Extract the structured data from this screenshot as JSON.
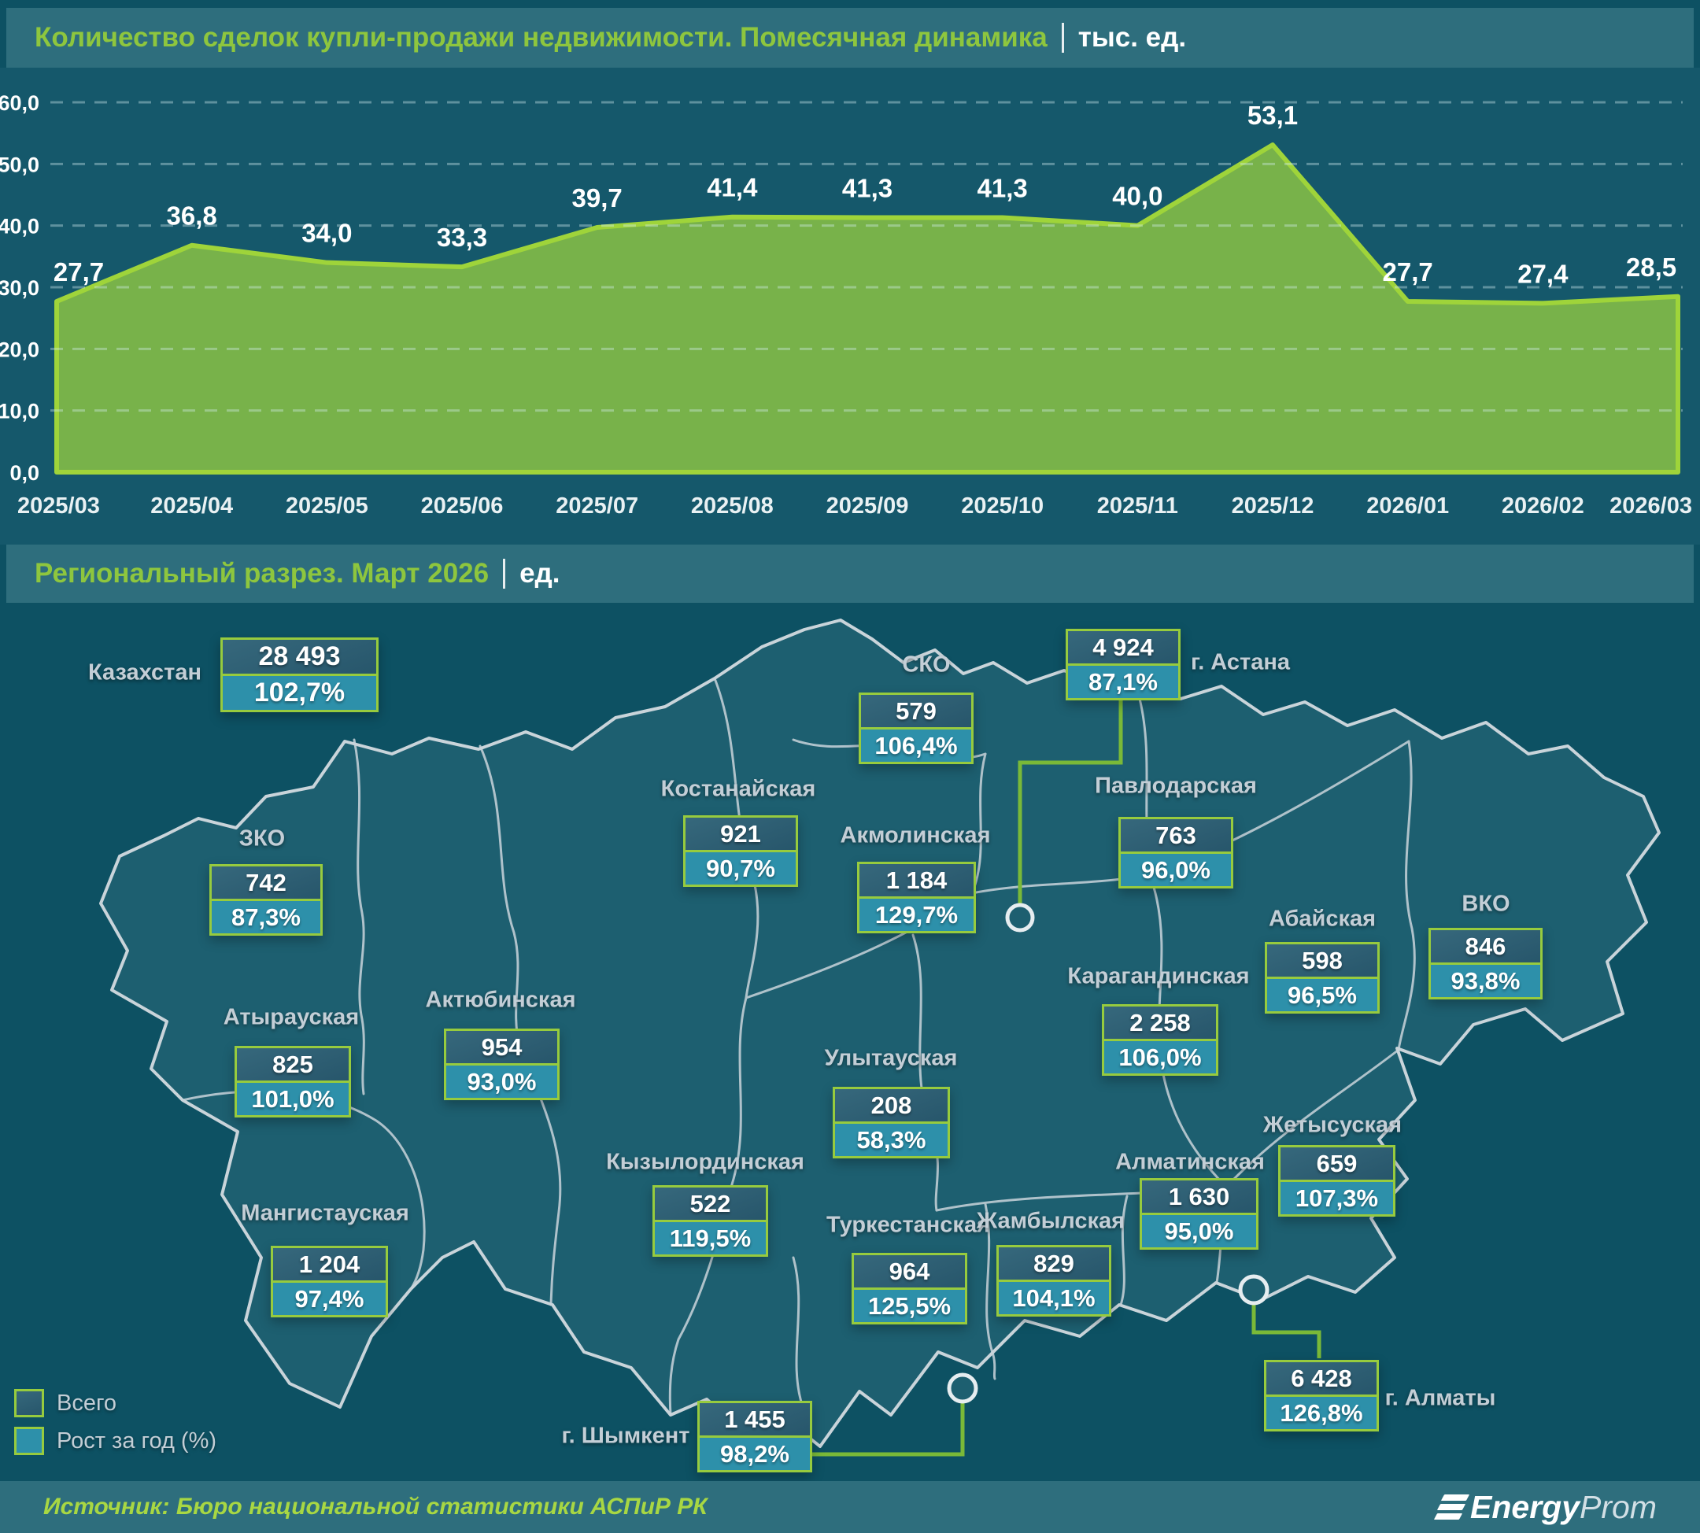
{
  "header1": {
    "title": "Количество сделок купли-продажи недвижимости. Помесячная динамика",
    "unit": "тыс. ед."
  },
  "header2": {
    "title": "Региональный разрез. Март 2026",
    "unit": "ед."
  },
  "chart_data": [
    {
      "type": "area",
      "title": "Количество сделок купли-продажи недвижимости. Помесячная динамика",
      "unit": "тыс. ед.",
      "x": [
        "2025/03",
        "2025/04",
        "2025/05",
        "2025/06",
        "2025/07",
        "2025/08",
        "2025/09",
        "2025/10",
        "2025/11",
        "2025/12",
        "2026/01",
        "2026/02",
        "2026/03"
      ],
      "values": [
        27.7,
        36.8,
        34.0,
        33.3,
        39.7,
        41.4,
        41.3,
        41.3,
        40.0,
        53.1,
        27.7,
        27.4,
        28.5
      ],
      "value_labels": [
        "27,7",
        "36,8",
        "34,0",
        "33,3",
        "39,7",
        "41,4",
        "41,3",
        "41,3",
        "40,0",
        "53,1",
        "27,7",
        "27,4",
        "28,5"
      ],
      "ylim": [
        0,
        60
      ],
      "y_ticks": {
        "values": [
          0,
          10,
          20,
          30,
          40,
          50,
          60
        ],
        "labels": [
          "0,0",
          "10,0",
          "20,0",
          "30,0",
          "40,0",
          "50,0",
          "60,0"
        ]
      },
      "grid": "dashed horizontal",
      "legend_position": "none",
      "area_color": "#78b24a",
      "line_color": "#9fd43a",
      "label_color": "#ffffff"
    },
    {
      "type": "map",
      "title": "Региональный разрез. Март 2026",
      "unit": "ед.",
      "value_series": "Всего",
      "growth_series": "Рост за год (%)",
      "regions": [
        {
          "name": "Казахстан",
          "value": "28 493",
          "growth": "102,7%"
        },
        {
          "name": "СКО",
          "value": "579",
          "growth": "106,4%"
        },
        {
          "name": "г. Астана",
          "value": "4 924",
          "growth": "87,1%"
        },
        {
          "name": "Костанайская",
          "value": "921",
          "growth": "90,7%"
        },
        {
          "name": "Акмолинская",
          "value": "1 184",
          "growth": "129,7%"
        },
        {
          "name": "Павлодарская",
          "value": "763",
          "growth": "96,0%"
        },
        {
          "name": "ЗКО",
          "value": "742",
          "growth": "87,3%"
        },
        {
          "name": "Атырауская",
          "value": "825",
          "growth": "101,0%"
        },
        {
          "name": "Актюбинская",
          "value": "954",
          "growth": "93,0%"
        },
        {
          "name": "Абайская",
          "value": "598",
          "growth": "96,5%"
        },
        {
          "name": "ВКО",
          "value": "846",
          "growth": "93,8%"
        },
        {
          "name": "Карагандинская",
          "value": "2 258",
          "growth": "106,0%"
        },
        {
          "name": "Улытауская",
          "value": "208",
          "growth": "58,3%"
        },
        {
          "name": "Мангистауская",
          "value": "1 204",
          "growth": "97,4%"
        },
        {
          "name": "Кызылординская",
          "value": "522",
          "growth": "119,5%"
        },
        {
          "name": "Жетысуская",
          "value": "659",
          "growth": "107,3%"
        },
        {
          "name": "Алматинская",
          "value": "1 630",
          "growth": "95,0%"
        },
        {
          "name": "Туркестанская",
          "value": "964",
          "growth": "125,5%"
        },
        {
          "name": "Жамбылская",
          "value": "829",
          "growth": "104,1%"
        },
        {
          "name": "г. Алматы",
          "value": "6 428",
          "growth": "126,8%"
        },
        {
          "name": "г. Шымкент",
          "value": "1 455",
          "growth": "98,2%"
        }
      ]
    }
  ],
  "legend": {
    "items": [
      {
        "label": "Всего"
      },
      {
        "label": "Рост за год (%)"
      }
    ]
  },
  "footer": {
    "source": "Источник: Бюро национальной статистики АСПиР РК",
    "logo_bold": "Energy",
    "logo_light": "Prom"
  },
  "colors": {
    "accent_green": "#8ec63e",
    "box_border": "#97cb3e",
    "growth_teal": "#2d90aa",
    "map_fill": "#1d5f70",
    "background": "#0d5163"
  }
}
